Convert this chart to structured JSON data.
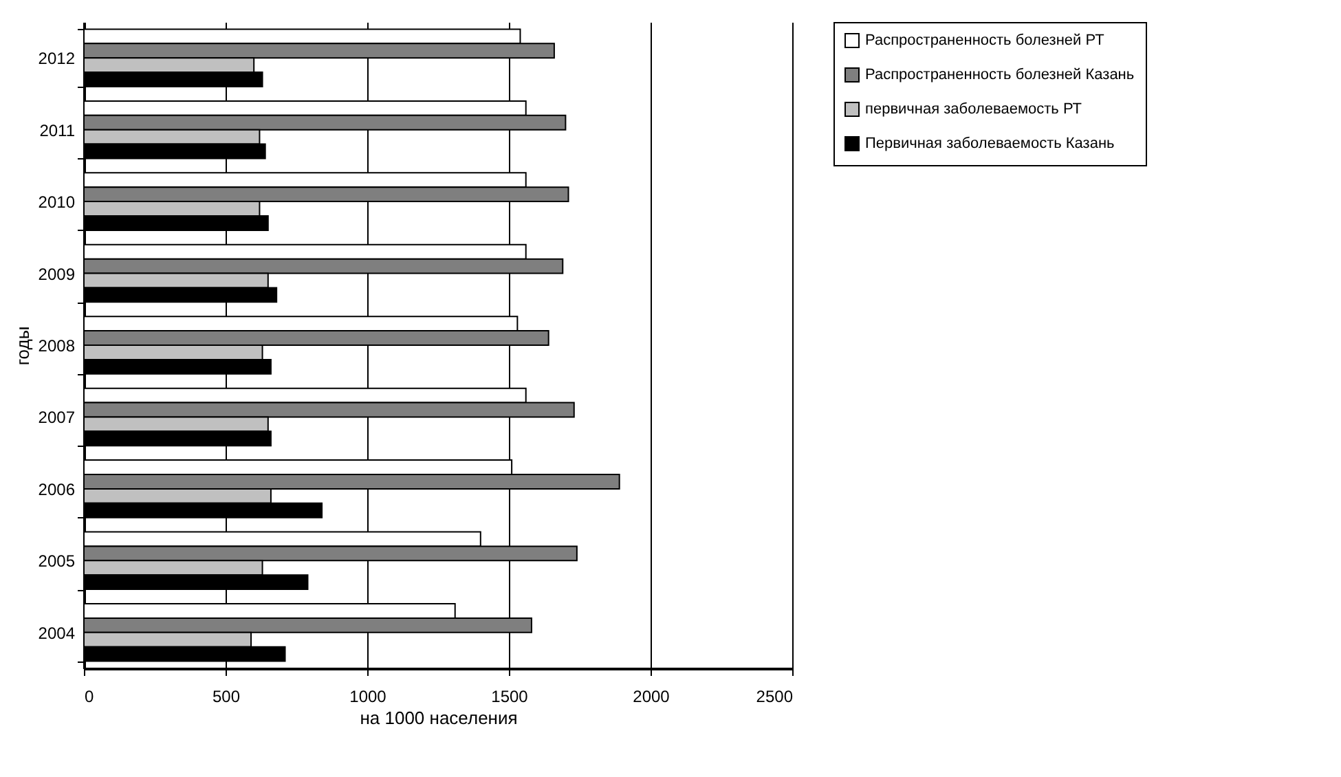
{
  "chart_data": {
    "type": "bar",
    "orientation": "horizontal",
    "xlabel": "на 1000 населения",
    "ylabel": "годы",
    "categories": [
      "2012",
      "2011",
      "2010",
      "2009",
      "2008",
      "2007",
      "2006",
      "2005",
      "2004"
    ],
    "series": [
      {
        "name": "Распространенность болезней РТ",
        "color": "#ffffff",
        "values": [
          1540,
          1560,
          1560,
          1560,
          1530,
          1560,
          1510,
          1400,
          1310
        ]
      },
      {
        "name": "Распространенность болезней Казань",
        "color": "#7f7f7f",
        "values": [
          1660,
          1700,
          1710,
          1690,
          1640,
          1730,
          1890,
          1740,
          1580
        ]
      },
      {
        "name": "первичная заболеваемость РТ",
        "color": "#c0c0c0",
        "values": [
          600,
          620,
          620,
          650,
          630,
          650,
          660,
          630,
          590
        ]
      },
      {
        "name": "Первичная заболеваемость Казань",
        "color": "#000000",
        "values": [
          630,
          640,
          650,
          680,
          660,
          660,
          840,
          790,
          710
        ]
      }
    ],
    "xlim": [
      0,
      2500
    ],
    "xticks": [
      0,
      500,
      1000,
      1500,
      2000,
      2500
    ],
    "grid": "x",
    "legend": "right"
  }
}
